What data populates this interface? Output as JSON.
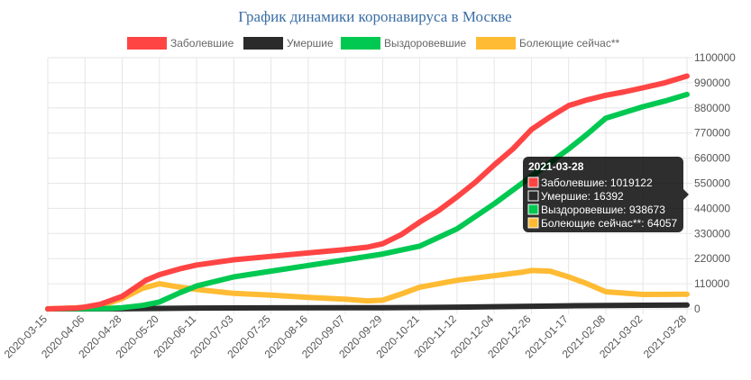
{
  "chart_data": {
    "type": "line",
    "title": "График динамики коронавируса в Москве",
    "xlabel": "",
    "ylabel": "",
    "ylim": [
      0,
      1100000
    ],
    "y_ticks": [
      0,
      110000,
      220000,
      330000,
      440000,
      550000,
      660000,
      770000,
      880000,
      990000,
      1100000
    ],
    "y_axis_position": "right",
    "grid": true,
    "legend_position": "top",
    "x_ticks": [
      "2020-03-15",
      "2020-04-06",
      "2020-04-28",
      "2020-05-20",
      "2020-06-11",
      "2020-07-03",
      "2020-07-25",
      "2020-08-16",
      "2020-09-07",
      "2020-09-29",
      "2020-10-21",
      "2020-11-12",
      "2020-12-04",
      "2020-12-26",
      "2021-01-17",
      "2021-02-08",
      "2021-03-02",
      "2021-03-28"
    ],
    "series": [
      {
        "name": "Заболевшие",
        "color": "#ff4444",
        "points": [
          [
            "2020-03-15",
            0
          ],
          [
            "2020-04-01",
            3500
          ],
          [
            "2020-04-06",
            8000
          ],
          [
            "2020-04-15",
            20000
          ],
          [
            "2020-04-28",
            55000
          ],
          [
            "2020-05-05",
            90000
          ],
          [
            "2020-05-12",
            125000
          ],
          [
            "2020-05-20",
            150000
          ],
          [
            "2020-06-01",
            175000
          ],
          [
            "2020-06-11",
            192000
          ],
          [
            "2020-07-03",
            215000
          ],
          [
            "2020-07-25",
            230000
          ],
          [
            "2020-08-16",
            245000
          ],
          [
            "2020-09-07",
            260000
          ],
          [
            "2020-09-20",
            270000
          ],
          [
            "2020-09-29",
            285000
          ],
          [
            "2020-10-10",
            325000
          ],
          [
            "2020-10-21",
            380000
          ],
          [
            "2020-11-01",
            430000
          ],
          [
            "2020-11-12",
            490000
          ],
          [
            "2020-11-23",
            555000
          ],
          [
            "2020-12-04",
            630000
          ],
          [
            "2020-12-15",
            700000
          ],
          [
            "2020-12-26",
            785000
          ],
          [
            "2021-01-06",
            840000
          ],
          [
            "2021-01-17",
            890000
          ],
          [
            "2021-01-28",
            915000
          ],
          [
            "2021-02-08",
            935000
          ],
          [
            "2021-02-19",
            950000
          ],
          [
            "2021-03-02",
            968000
          ],
          [
            "2021-03-15",
            990000
          ],
          [
            "2021-03-28",
            1019122
          ]
        ]
      },
      {
        "name": "Умершие",
        "color": "#2b2b2b",
        "points": [
          [
            "2020-03-15",
            0
          ],
          [
            "2020-04-28",
            500
          ],
          [
            "2020-05-20",
            2000
          ],
          [
            "2020-06-11",
            3500
          ],
          [
            "2020-07-25",
            4500
          ],
          [
            "2020-09-29",
            5000
          ],
          [
            "2020-10-21",
            6000
          ],
          [
            "2020-11-12",
            7500
          ],
          [
            "2020-12-04",
            9500
          ],
          [
            "2020-12-26",
            11500
          ],
          [
            "2021-01-17",
            13500
          ],
          [
            "2021-02-08",
            14800
          ],
          [
            "2021-03-02",
            15700
          ],
          [
            "2021-03-28",
            16392
          ]
        ]
      },
      {
        "name": "Выздоровевшие",
        "color": "#00c851",
        "points": [
          [
            "2020-03-15",
            0
          ],
          [
            "2020-04-20",
            2000
          ],
          [
            "2020-04-28",
            5000
          ],
          [
            "2020-05-10",
            15000
          ],
          [
            "2020-05-20",
            30000
          ],
          [
            "2020-06-01",
            70000
          ],
          [
            "2020-06-11",
            100000
          ],
          [
            "2020-07-03",
            140000
          ],
          [
            "2020-07-25",
            165000
          ],
          [
            "2020-08-16",
            190000
          ],
          [
            "2020-09-07",
            215000
          ],
          [
            "2020-09-29",
            240000
          ],
          [
            "2020-10-21",
            275000
          ],
          [
            "2020-11-12",
            350000
          ],
          [
            "2020-12-04",
            460000
          ],
          [
            "2020-12-26",
            580000
          ],
          [
            "2021-01-17",
            700000
          ],
          [
            "2021-01-28",
            765000
          ],
          [
            "2021-02-08",
            835000
          ],
          [
            "2021-02-19",
            860000
          ],
          [
            "2021-03-02",
            885000
          ],
          [
            "2021-03-15",
            910000
          ],
          [
            "2021-03-28",
            938673
          ]
        ]
      },
      {
        "name": "Болеющие сейчас**",
        "color": "#ffbb33",
        "points": [
          [
            "2020-03-15",
            0
          ],
          [
            "2020-04-06",
            6000
          ],
          [
            "2020-04-20",
            25000
          ],
          [
            "2020-04-28",
            45000
          ],
          [
            "2020-05-10",
            90000
          ],
          [
            "2020-05-20",
            110000
          ],
          [
            "2020-06-01",
            95000
          ],
          [
            "2020-06-11",
            85000
          ],
          [
            "2020-07-03",
            68000
          ],
          [
            "2020-07-25",
            60000
          ],
          [
            "2020-08-16",
            50000
          ],
          [
            "2020-09-07",
            42000
          ],
          [
            "2020-09-20",
            35000
          ],
          [
            "2020-09-29",
            38000
          ],
          [
            "2020-10-10",
            65000
          ],
          [
            "2020-10-21",
            95000
          ],
          [
            "2020-11-12",
            125000
          ],
          [
            "2020-12-04",
            145000
          ],
          [
            "2020-12-20",
            160000
          ],
          [
            "2020-12-26",
            168000
          ],
          [
            "2021-01-06",
            165000
          ],
          [
            "2021-01-17",
            140000
          ],
          [
            "2021-01-28",
            110000
          ],
          [
            "2021-02-08",
            75000
          ],
          [
            "2021-03-02",
            63000
          ],
          [
            "2021-03-28",
            64057
          ]
        ]
      }
    ],
    "tooltip": {
      "title": "2021-03-28",
      "rows": [
        {
          "text": "Заболевшие: 1019122",
          "color": "#ff4444"
        },
        {
          "text": "Умершие: 16392",
          "color": "#2b2b2b"
        },
        {
          "text": "Выздоровевшие: 938673",
          "color": "#00c851"
        },
        {
          "text": "Болеющие сейчас**: 64057",
          "color": "#ffbb33"
        }
      ]
    }
  }
}
